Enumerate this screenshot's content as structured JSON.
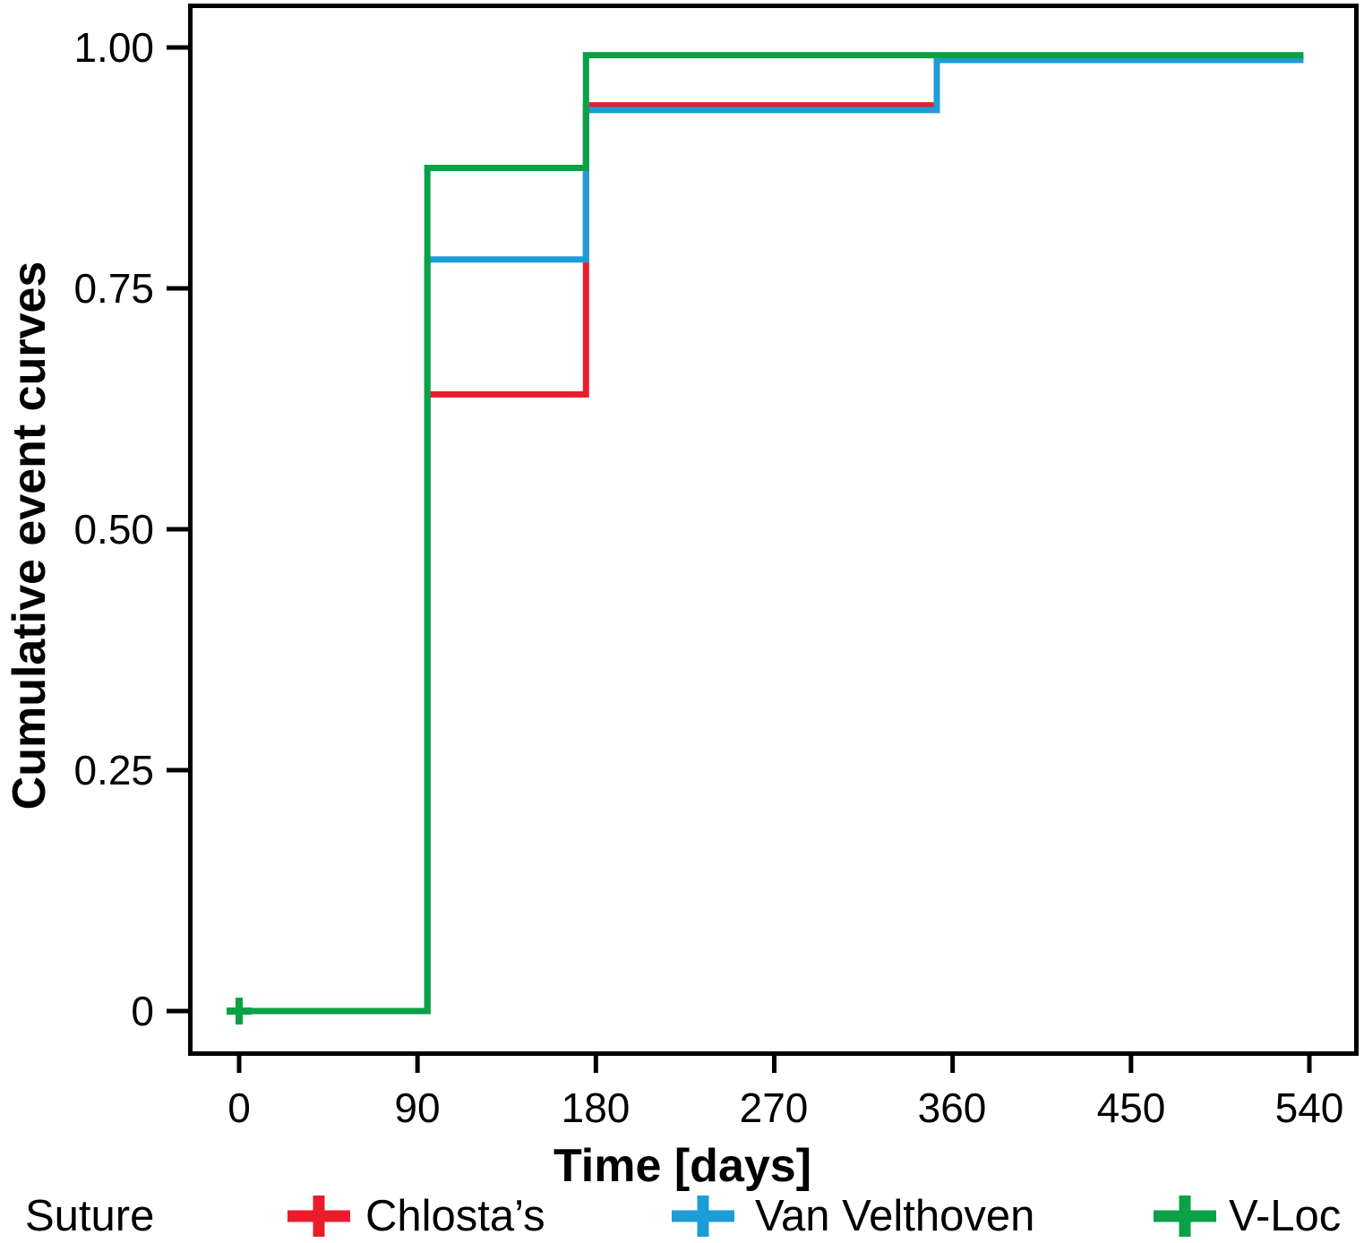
{
  "chart_data": {
    "type": "line",
    "subtype": "step-cumulative-incidence",
    "title": "",
    "xlabel": "Time [days]",
    "ylabel": "Cumulative event curves",
    "xlim": [
      0,
      540
    ],
    "ylim": [
      0,
      1.0
    ],
    "grid": false,
    "x_ticks": [
      0,
      90,
      180,
      270,
      360,
      450,
      540
    ],
    "x_tick_labels": [
      "0",
      "90",
      "180",
      "270",
      "360",
      "450",
      "540"
    ],
    "y_ticks": [
      0,
      0.25,
      0.5,
      0.75,
      1
    ],
    "y_tick_labels": [
      "0",
      "0.25",
      "0.50",
      "0.75",
      "1.00"
    ],
    "legend": {
      "title": "Suture",
      "position": "bottom"
    },
    "series": [
      {
        "name": "Chlosta’s",
        "color": "#EA1C2C",
        "points": [
          [
            0,
            0
          ],
          [
            95,
            0
          ],
          [
            95,
            0.64
          ],
          [
            175,
            0.64
          ],
          [
            175,
            0.94
          ],
          [
            352,
            0.94
          ],
          [
            352,
            0.99
          ],
          [
            537,
            0.99
          ]
        ]
      },
      {
        "name": "Van Velthoven",
        "color": "#1E9CD7",
        "points": [
          [
            0,
            0
          ],
          [
            95,
            0
          ],
          [
            95,
            0.78
          ],
          [
            175,
            0.78
          ],
          [
            175,
            0.935
          ],
          [
            352,
            0.935
          ],
          [
            352,
            0.987
          ],
          [
            537,
            0.987
          ]
        ]
      },
      {
        "name": "V-Loc",
        "color": "#0AA147",
        "points": [
          [
            0,
            0
          ],
          [
            95,
            0
          ],
          [
            95,
            0.875
          ],
          [
            175,
            0.875
          ],
          [
            175,
            0.992
          ],
          [
            537,
            0.992
          ]
        ]
      }
    ],
    "censor_marks": [
      {
        "series": "V-Loc",
        "x": 0,
        "y": 0
      }
    ]
  }
}
